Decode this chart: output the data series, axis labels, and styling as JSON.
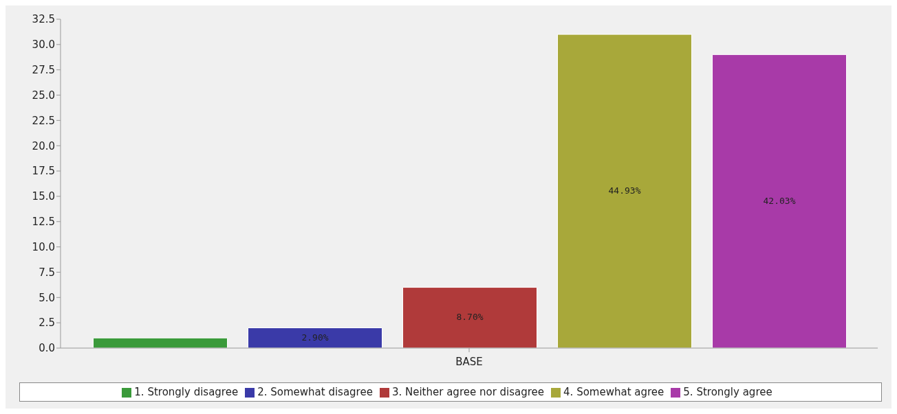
{
  "chart_data": {
    "type": "bar",
    "xlabel": "BASE",
    "categories": [
      null
    ],
    "series": [
      {
        "name": "1. Strongly disagree",
        "color": "#3a9a3a",
        "values": [
          1
        ]
      },
      {
        "name": "2. Somewhat disagree",
        "color": "#3a3aa8",
        "values": [
          2
        ]
      },
      {
        "name": "3. Neither agree nor disagree",
        "color": "#b03a3a",
        "values": [
          6
        ]
      },
      {
        "name": "4. Somewhat agree",
        "color": "#a8a83a",
        "values": [
          31
        ]
      },
      {
        "name": "5. Strongly agree",
        "color": "#a83aa8",
        "values": [
          29
        ]
      }
    ],
    "annotations": [
      "2.90%",
      "8.70%",
      "44.93%",
      "42.03%"
    ],
    "ylim": [
      0,
      32.5
    ],
    "yticks": [
      {
        "value": 0,
        "label": "0.0"
      },
      2.5,
      {
        "value": 5,
        "label": "5.0"
      },
      7.5,
      {
        "value": 10,
        "label": "10.0"
      },
      12.5,
      {
        "value": 15,
        "label": "15.0"
      },
      17.5,
      {
        "value": 20,
        "label": "20.0"
      },
      22.5,
      {
        "value": 25,
        "label": "25.0"
      },
      27.5,
      {
        "value": 30,
        "label": "30.0"
      },
      32.5
    ],
    "grid": false,
    "legend": "bottom"
  }
}
